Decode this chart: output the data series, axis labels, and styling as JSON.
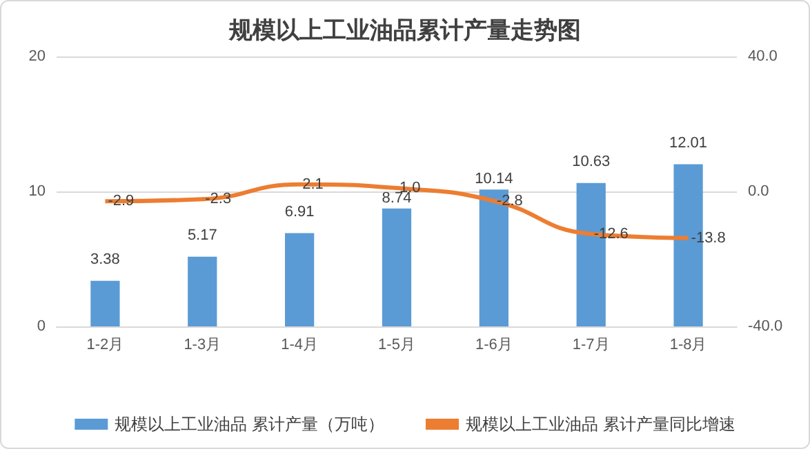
{
  "chart_data": {
    "type": "bar",
    "title": "规模以上工业油品累计产量走势图",
    "categories": [
      "1-2月",
      "1-3月",
      "1-4月",
      "1-5月",
      "1-6月",
      "1-7月",
      "1-8月"
    ],
    "series": [
      {
        "name": "规模以上工业油品 累计产量（万吨）",
        "color": "#5b9bd5",
        "values": [
          3.38,
          5.17,
          6.91,
          8.74,
          10.14,
          10.63,
          12.01
        ]
      },
      {
        "name": "规模以上工业油品 累计产量同比增速",
        "type": "line",
        "axis": "y2",
        "color": "#ed7d31",
        "values": [
          -2.9,
          -2.3,
          2.1,
          1.0,
          -2.8,
          -12.6,
          -13.8
        ],
        "value_labels": [
          "-2.9",
          "-2.3",
          "2.1",
          "1.0",
          "-2.8",
          "-12.6",
          "-13.8"
        ]
      }
    ],
    "ylim": [
      0,
      20
    ],
    "yticks": [
      0,
      10,
      20
    ],
    "y2lim": [
      -40,
      40
    ],
    "y2ticks": [
      {
        "value": -40,
        "label": "-40.0"
      },
      {
        "value": 0,
        "label": "0.0"
      },
      {
        "value": 40,
        "label": "40.0"
      }
    ],
    "grid": "y",
    "legend": "bottom",
    "data_labels": true,
    "marker": "none"
  }
}
